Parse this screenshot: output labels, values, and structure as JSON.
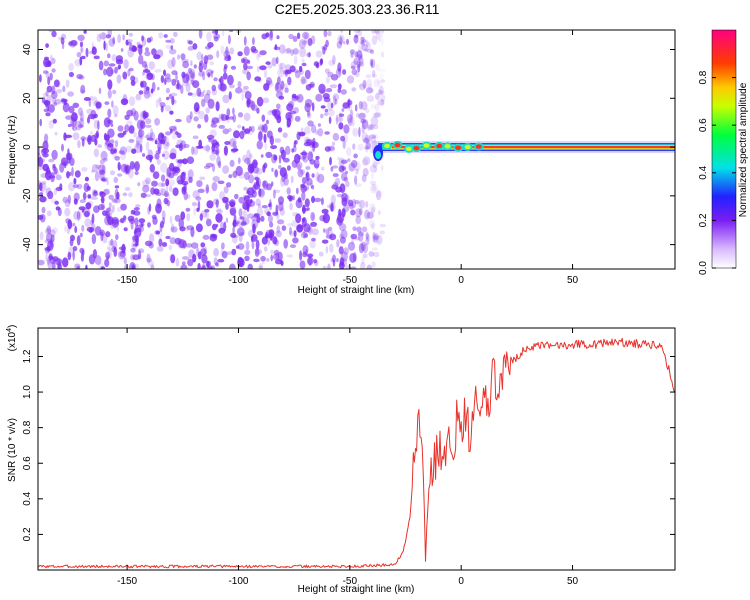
{
  "title": "C2E5.2025.303.23.36.R11",
  "colors": {
    "snr_line": "#e8322b",
    "noise_point": "#7b2cf0",
    "axis": "#000000"
  },
  "chart_data": [
    {
      "type": "heatmap",
      "xlabel": "Height of straight line (km)",
      "ylabel": "Frequency (Hz)",
      "xlim": [
        -190,
        96
      ],
      "ylim": [
        -50,
        48
      ],
      "xticks": [
        -150,
        -100,
        -50,
        0,
        50
      ],
      "yticks": [
        -40,
        -20,
        0,
        20,
        40
      ],
      "grid": false,
      "features": {
        "noise_region_x": [
          -190,
          -35
        ],
        "signal_start_x": -40,
        "signal_frequency": 0
      },
      "colorbar": {
        "label": "Normalized spectral amplitude",
        "range": [
          0,
          1
        ],
        "ticks": [
          0.0,
          0.2,
          0.4,
          0.6,
          0.8
        ],
        "tick_labels": [
          "0.0",
          "0.2",
          "0.4",
          "0.6",
          "0.8"
        ],
        "colormap": "rainbow (white → purple → blue → cyan → green → yellow → orange → red → magenta)"
      }
    },
    {
      "type": "line",
      "xlabel": "Height of straight line (km)",
      "ylabel": "SNR (10 * v/v)",
      "scale_label": "(x10",
      "scale_exponent": "4",
      "scale_suffix": ")",
      "xlim": [
        -190,
        96
      ],
      "ylim": [
        0,
        1.36
      ],
      "xticks": [
        -150,
        -100,
        -50,
        0,
        50
      ],
      "yticks": [
        0.2,
        0.4,
        0.6,
        0.8,
        1.0,
        1.2
      ],
      "ytick_labels": [
        "0.2",
        "0.4",
        "0.6",
        "0.8",
        "1.0",
        "1.2"
      ],
      "grid": false,
      "series": [
        {
          "x": [
            -190,
            -150,
            -100,
            -50,
            -30,
            -26,
            -23,
            -21,
            -19,
            -17,
            -16,
            -14,
            -12,
            -10,
            -8,
            -6,
            -4,
            -2,
            0,
            2,
            4,
            6,
            8,
            10,
            12,
            14,
            16,
            18,
            20,
            25,
            30,
            40,
            50,
            60,
            70,
            80,
            90,
            96
          ],
          "y": [
            0.02,
            0.02,
            0.02,
            0.02,
            0.03,
            0.1,
            0.3,
            0.62,
            0.9,
            0.5,
            0.1,
            0.55,
            0.6,
            0.7,
            0.55,
            0.8,
            0.65,
            0.85,
            0.75,
            0.9,
            0.7,
            0.95,
            0.85,
            1.0,
            0.9,
            1.08,
            1.05,
            1.12,
            1.15,
            1.2,
            1.25,
            1.26,
            1.27,
            1.27,
            1.28,
            1.27,
            1.27,
            1.0
          ]
        }
      ]
    }
  ]
}
